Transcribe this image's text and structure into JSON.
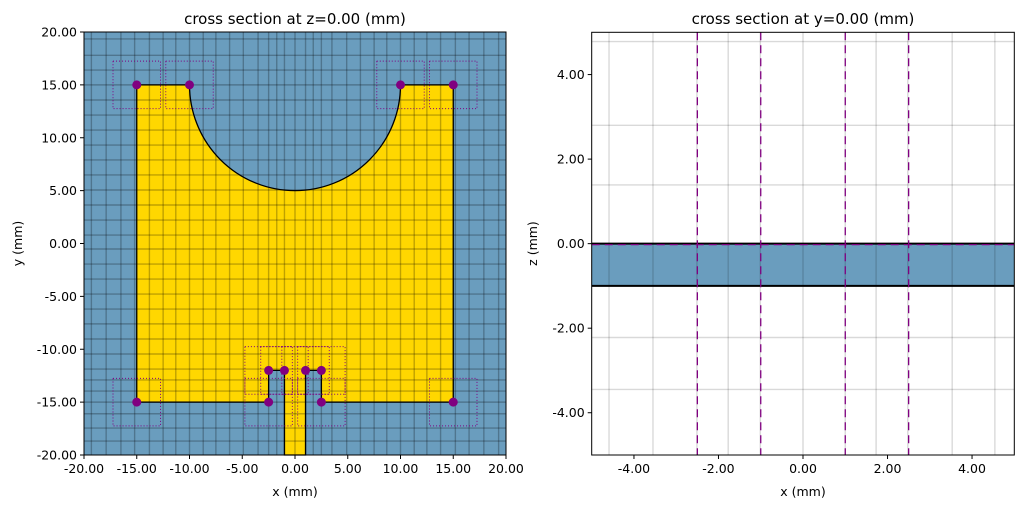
{
  "chart_data": [
    {
      "type": "other",
      "title": "cross section at z=0.00 (mm)",
      "xlabel": "x (mm)",
      "ylabel": "y (mm)",
      "xlim": [
        -20,
        20
      ],
      "ylim": [
        -20,
        20
      ],
      "xticks": [
        -20,
        -15,
        -10,
        -5,
        0,
        5,
        10,
        15,
        20
      ],
      "xtick_labels": [
        "-20.00",
        "-15.00",
        "-10.00",
        "-5.00",
        "0.00",
        "5.00",
        "10.00",
        "15.00",
        "20.00"
      ],
      "yticks": [
        20,
        15,
        10,
        5,
        0,
        -5,
        -10,
        -15,
        -20
      ],
      "ytick_labels": [
        "20.00",
        "15.00",
        "10.00",
        "5.00",
        "0.00",
        "-5.00",
        "-10.00",
        "-15.00",
        "-20.00"
      ],
      "background_fill": "#6a9dbe",
      "patch": {
        "fill": "#ffd700",
        "outline": [
          [
            -15,
            15
          ],
          [
            -10,
            15
          ],
          [
            "arc",
            0,
            15,
            10
          ],
          [
            10,
            15
          ],
          [
            15,
            15
          ],
          [
            15,
            -15
          ],
          [
            2.5,
            -15
          ],
          [
            2.5,
            -12
          ],
          [
            1,
            -12
          ],
          [
            1,
            -20
          ],
          [
            -1,
            -20
          ],
          [
            -1,
            -12
          ],
          [
            -2.5,
            -12
          ],
          [
            -2.5,
            -15
          ],
          [
            -15,
            -15
          ]
        ]
      },
      "mesh_grid_x": [
        -19.3,
        -17.9,
        -16.5,
        -15.2,
        -13.8,
        -12.5,
        -11.3,
        -10,
        -8.7,
        -7.5,
        -6.2,
        -4.9,
        -3.5,
        -2.5,
        -1.73,
        -1.0,
        0,
        1.0,
        1.73,
        2.5,
        3.5,
        4.9,
        6.2,
        7.5,
        8.7,
        10,
        11.3,
        12.5,
        13.8,
        15.2,
        16.5,
        17.9,
        19.3
      ],
      "mesh_grid_y": [
        19.34,
        17.8,
        16.4,
        15.0,
        13.57,
        12.15,
        10.73,
        9.31,
        7.9,
        6.48,
        5.06,
        3.64,
        2.22,
        0.8,
        -0.52,
        -1.94,
        -3.36,
        -4.78,
        -6.2,
        -7.6,
        -9.03,
        -10.45,
        -11.87,
        -12.9,
        -13.95,
        -15.0,
        -16.1,
        -17.45,
        -18.68
      ],
      "points": [
        [
          -15,
          15
        ],
        [
          -10,
          15
        ],
        [
          10,
          15
        ],
        [
          15,
          15
        ],
        [
          -15,
          -15
        ],
        [
          15,
          -15
        ],
        [
          -2.5,
          -12
        ],
        [
          -1,
          -12
        ],
        [
          1,
          -12
        ],
        [
          2.5,
          -12
        ],
        [
          -2.5,
          -15
        ],
        [
          2.5,
          -15
        ]
      ],
      "point_box_halfsize": 2.25,
      "point_color": "#800080"
    },
    {
      "type": "other",
      "title": "cross section at y=0.00 (mm)",
      "xlabel": "x (mm)",
      "ylabel": "z (mm)",
      "xlim": [
        -5,
        5
      ],
      "ylim": [
        -5,
        5
      ],
      "xticks": [
        -4,
        -2,
        0,
        2,
        4
      ],
      "xtick_labels": [
        "-4.00",
        "-2.00",
        "0.00",
        "2.00",
        "4.00"
      ],
      "yticks": [
        4,
        2,
        0,
        -2,
        -4
      ],
      "ytick_labels": [
        "4.00",
        "2.00",
        "0.00",
        "-2.00",
        "-4.00"
      ],
      "substrate": {
        "z_top": 0,
        "z_bottom": -1,
        "fill": "#6a9dbe"
      },
      "mesh_grid_x": [
        -4.59,
        -3.55,
        -2.51,
        -1.77,
        -1.01,
        0,
        1.0,
        1.73,
        2.48,
        3.53,
        4.54
      ],
      "mesh_grid_z": [
        4.78,
        2.8,
        1.39,
        -2.22,
        -3.45
      ],
      "dashed_lines_x": [
        -2.5,
        -1,
        1,
        2.5
      ],
      "dashed_line_z": 0,
      "dashed_color": "#800080"
    }
  ]
}
